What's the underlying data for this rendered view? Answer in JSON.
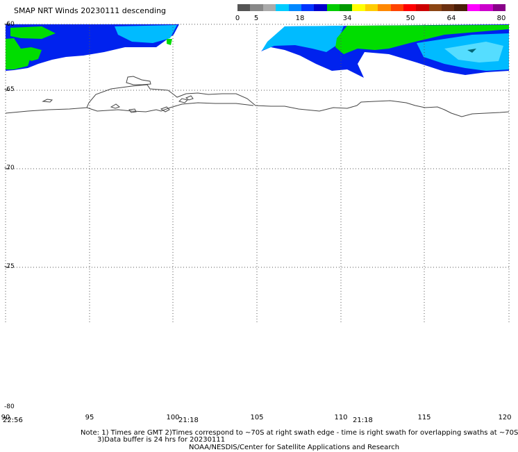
{
  "title": "SMAP NRT Winds  20230111 descending",
  "colorbar": {
    "labels": [
      "0",
      "5",
      "18",
      "34",
      "50",
      "64",
      "80"
    ],
    "colors": [
      "#555555",
      "#888888",
      "#aaaaaa",
      "#00ccff",
      "#0088ff",
      "#0033ff",
      "#0000cc",
      "#00cc00",
      "#009900",
      "#ffff00",
      "#ffcc00",
      "#ff8800",
      "#ff4400",
      "#ff0000",
      "#cc0000",
      "#8b4513",
      "#6b3010",
      "#4a1e08",
      "#ff00ff",
      "#cc00cc",
      "#880088"
    ]
  },
  "map": {
    "lat_labels": [
      "-60",
      "-65",
      "-70",
      "-75",
      "-80"
    ],
    "lon_labels": [
      "90",
      "95",
      "100",
      "105",
      "110",
      "115",
      "120"
    ],
    "swath_times": [
      "22:56",
      "21:18",
      "21:18"
    ]
  },
  "notes": {
    "line1": "Note: 1) Times are GMT 2)Times correspond to ~70S at right swath edge - time is right swath for overlapping swaths at ~70S",
    "line2": "3)Data buffer is 24 hrs for 20230111",
    "credit": "NOAA/NESDIS/Center for Satellite Applications and Research"
  },
  "colors": {
    "wind_green": "#00dd00",
    "wind_blue": "#0022ee",
    "wind_cyan": "#00bbff",
    "wind_light_cyan": "#55ddff",
    "coastline": "#444444",
    "grid": "#555555"
  }
}
